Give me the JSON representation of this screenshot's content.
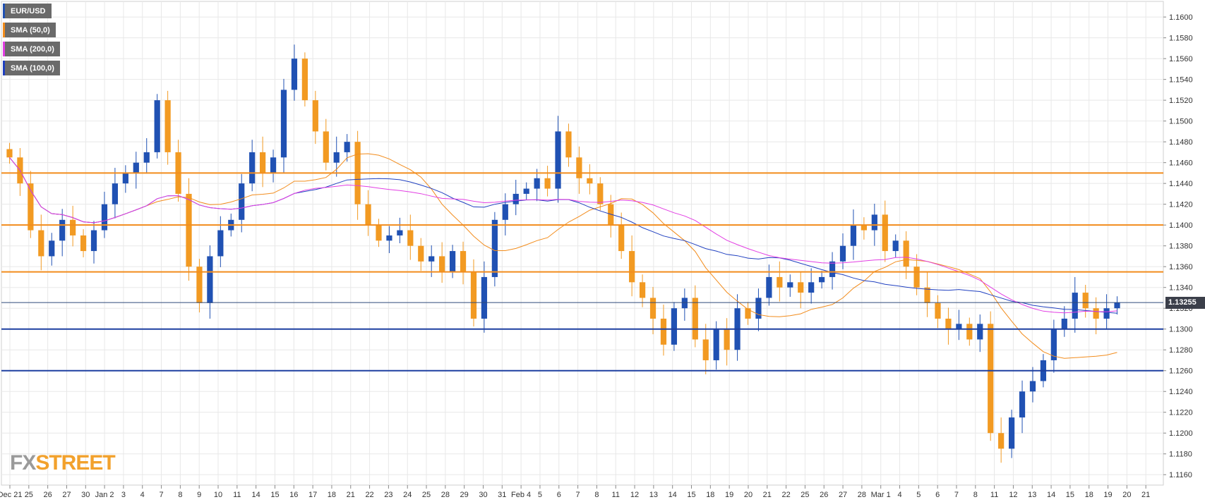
{
  "legend": [
    {
      "label": "EUR/USD",
      "color": "#2051b3"
    },
    {
      "label": "SMA (50,0)",
      "color": "#f28c1c"
    },
    {
      "label": "SMA (200,0)",
      "color": "#e23ee3"
    },
    {
      "label": "SMA (100,0)",
      "color": "#2040c0"
    }
  ],
  "price_tag": "1.13255",
  "watermark": {
    "part1": "FX",
    "part2": "STREET"
  },
  "colors": {
    "bull": "#2051b3",
    "bear": "#f29a22",
    "sma50": "#f28c1c",
    "sma100": "#2040c0",
    "sma200": "#e23ee3",
    "resistance": "#f28c1c",
    "support": "#1d3fa0",
    "grid": "#e8e8e8"
  },
  "chart_data": {
    "type": "candlestick",
    "title": "EUR/USD",
    "ylim": [
      1.115,
      1.1615
    ],
    "y_ticks": [
      "1.1160",
      "1.1180",
      "1.1200",
      "1.1220",
      "1.1240",
      "1.1260",
      "1.1280",
      "1.1300",
      "1.1320",
      "1.1340",
      "1.1360",
      "1.1380",
      "1.1400",
      "1.1420",
      "1.1440",
      "1.1460",
      "1.1480",
      "1.1500",
      "1.1520",
      "1.1540",
      "1.1560",
      "1.1580",
      "1.1600"
    ],
    "x_labels": [
      "Dec 21",
      "25",
      "26",
      "27",
      "30",
      "Jan 2",
      "3",
      "4",
      "7",
      "8",
      "9",
      "10",
      "11",
      "14",
      "15",
      "16",
      "17",
      "18",
      "21",
      "22",
      "23",
      "24",
      "25",
      "28",
      "29",
      "30",
      "31",
      "Feb 4",
      "5",
      "6",
      "7",
      "8",
      "11",
      "12",
      "13",
      "14",
      "15",
      "18",
      "19",
      "20",
      "21",
      "22",
      "25",
      "26",
      "27",
      "28",
      "Mar 1",
      "4",
      "5",
      "6",
      "7",
      "8",
      "11",
      "12",
      "13",
      "14",
      "15",
      "18",
      "19",
      "20",
      "21"
    ],
    "close_series": [
      1.1465,
      1.144,
      1.1395,
      1.137,
      1.1385,
      1.1405,
      1.139,
      1.1375,
      1.1395,
      1.142,
      1.144,
      1.145,
      1.146,
      1.147,
      1.152,
      1.147,
      1.143,
      1.136,
      1.1325,
      1.137,
      1.1395,
      1.1405,
      1.144,
      1.147,
      1.145,
      1.1465,
      1.153,
      1.156,
      1.152,
      1.149,
      1.146,
      1.147,
      1.148,
      1.142,
      1.14,
      1.1385,
      1.139,
      1.1395,
      1.138,
      1.1365,
      1.137,
      1.1355,
      1.1375,
      1.1355,
      1.131,
      1.135,
      1.1405,
      1.142,
      1.143,
      1.1435,
      1.1445,
      1.1435,
      1.149,
      1.1465,
      1.1445,
      1.144,
      1.142,
      1.14,
      1.1375,
      1.1345,
      1.133,
      1.131,
      1.1285,
      1.132,
      1.133,
      1.129,
      1.127,
      1.13,
      1.128,
      1.132,
      1.131,
      1.133,
      1.135,
      1.134,
      1.1345,
      1.1335,
      1.1345,
      1.135,
      1.1365,
      1.138,
      1.14,
      1.1395,
      1.141,
      1.1375,
      1.1385,
      1.136,
      1.134,
      1.1325,
      1.131,
      1.13,
      1.1305,
      1.129,
      1.1305,
      1.12,
      1.1185,
      1.1215,
      1.124,
      1.125,
      1.127,
      1.13,
      1.131,
      1.1335,
      1.132,
      1.131,
      1.132,
      1.13255
    ],
    "support_levels": [
      1.13,
      1.126
    ],
    "resistance_levels": [
      1.1355,
      1.14,
      1.145
    ],
    "current_price": 1.13255
  }
}
